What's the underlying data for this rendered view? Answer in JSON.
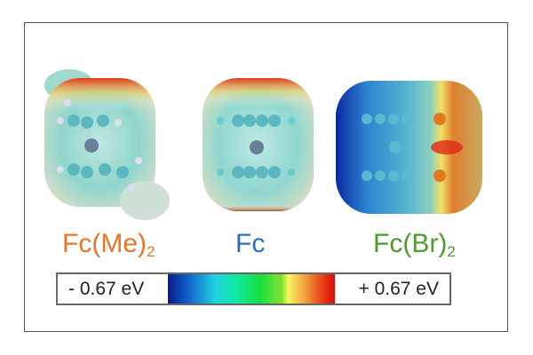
{
  "molecules": [
    {
      "name": "Fc(Me)",
      "subscript": "2",
      "color": "#e8742a"
    },
    {
      "name": "Fc",
      "subscript": "",
      "color": "#2e6db4"
    },
    {
      "name": "Fc(Br)",
      "subscript": "2",
      "color": "#4e9a2e"
    }
  ],
  "colorbar": {
    "min_label": "- 0.67 eV",
    "max_label": "+ 0.67 eV",
    "min_value": -0.67,
    "max_value": 0.67,
    "unit": "eV"
  }
}
